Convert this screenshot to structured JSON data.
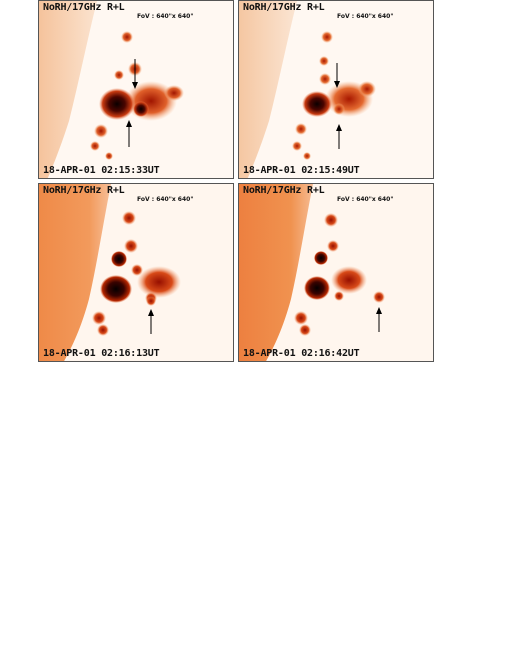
{
  "panels": [
    {
      "title": "NoRH/17GHz R+L",
      "fov": "FoV : 640\"x 640\"",
      "timestamp": "18-APR-01 02:15:33UT"
    },
    {
      "title": "NoRH/17GHz R+L",
      "fov": "FoV : 640\"x 640\"",
      "timestamp": "18-APR-01 02:15:49UT"
    },
    {
      "title": "NoRH/17GHz R+L",
      "fov": "FoV : 640\"x 640\"",
      "timestamp": "18-APR-01 02:16:13UT"
    },
    {
      "title": "NoRH/17GHz R+L",
      "fov": "FoV : 640\"x 640\"",
      "timestamp": "18-APR-01 02:16:42UT"
    }
  ],
  "colors": {
    "background": "#fff8f2",
    "disk_early": "#f8c9a4",
    "disk_late": "#f08a48",
    "bright_core": "#0d0000",
    "emission": "#b01a00",
    "arrow": "#000000"
  },
  "icons": [
    "arrow-down-icon",
    "arrow-up-icon"
  ]
}
